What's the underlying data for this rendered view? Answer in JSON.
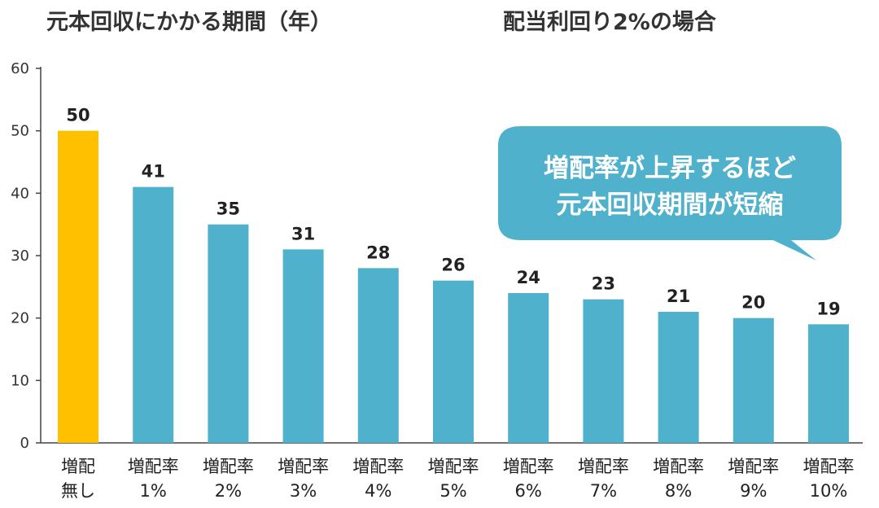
{
  "chart_data": {
    "type": "bar",
    "title": "元本回収にかかる期間（年）",
    "subtitle": "配当利回り2%の場合",
    "categories": [
      [
        "増配",
        "無し"
      ],
      [
        "増配率",
        "1%"
      ],
      [
        "増配率",
        "2%"
      ],
      [
        "増配率",
        "3%"
      ],
      [
        "増配率",
        "4%"
      ],
      [
        "増配率",
        "5%"
      ],
      [
        "増配率",
        "6%"
      ],
      [
        "増配率",
        "7%"
      ],
      [
        "増配率",
        "8%"
      ],
      [
        "増配率",
        "9%"
      ],
      [
        "増配率",
        "10%"
      ]
    ],
    "values": [
      50,
      41,
      35,
      31,
      28,
      26,
      24,
      23,
      21,
      20,
      19
    ],
    "ylim": [
      0,
      60
    ],
    "yticks": [
      "0",
      "10",
      "20",
      "30",
      "40",
      "50",
      "60"
    ],
    "grid": false,
    "colors": {
      "highlight": "#FFC000",
      "bar": "#4FB1CB",
      "bubble": "#4FB1CB"
    },
    "callout": [
      "増配率が上昇するほど",
      "元本回収期間が短縮"
    ]
  }
}
